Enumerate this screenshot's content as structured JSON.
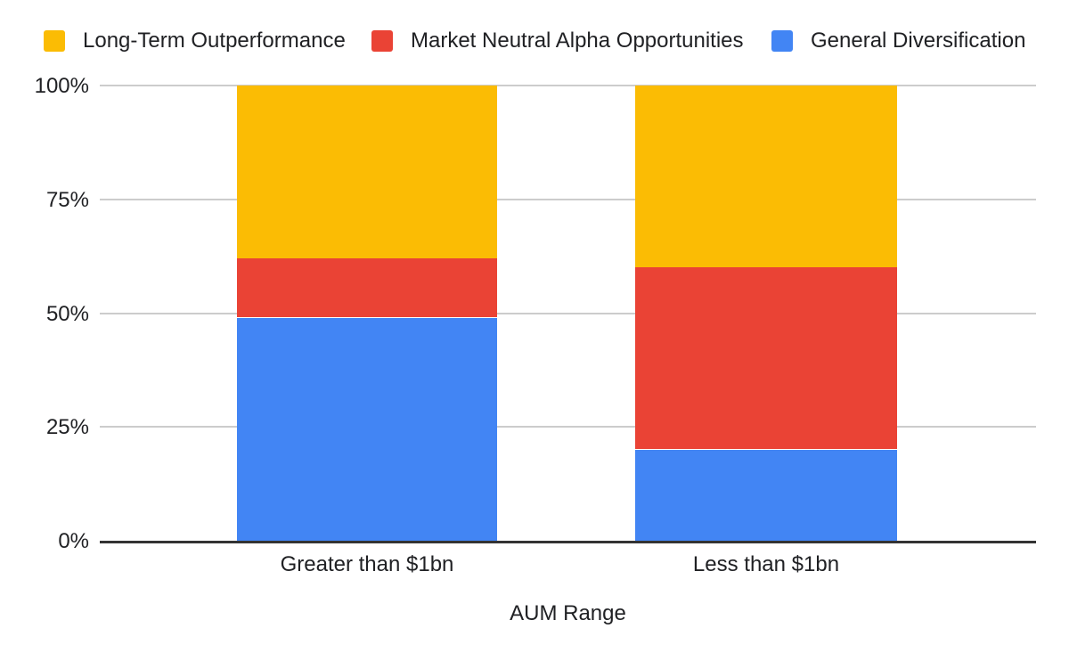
{
  "chart_data": {
    "type": "bar",
    "variant": "stacked-100-percent-column",
    "title": "",
    "xlabel": "AUM Range",
    "ylabel": "",
    "categories": [
      "Greater than $1bn",
      "Less than $1bn"
    ],
    "series": [
      {
        "name": "Long-Term Outperformance",
        "color": "#FBBC04",
        "values": [
          38,
          40
        ]
      },
      {
        "name": "Market Neutral Alpha Opportunities",
        "color": "#EA4335",
        "values": [
          13,
          40
        ]
      },
      {
        "name": "General Diversification",
        "color": "#4285F4",
        "values": [
          49,
          20
        ]
      }
    ],
    "stack_order_bottom_to_top": [
      "General Diversification",
      "Market Neutral Alpha Opportunities",
      "Long-Term Outperformance"
    ],
    "y_ticks": [
      {
        "label": "100%",
        "value": 100
      },
      {
        "label": "75%",
        "value": 75
      },
      {
        "label": "50%",
        "value": 50
      },
      {
        "label": "25%",
        "value": 25
      },
      {
        "label": "0%",
        "value": 0
      }
    ],
    "ylim": [
      0,
      100
    ],
    "grid": true,
    "legend_position": "top"
  },
  "colors": {
    "background": "#ffffff",
    "gridline": "#cccccc",
    "axis_line": "#333333",
    "text": "#202124"
  }
}
